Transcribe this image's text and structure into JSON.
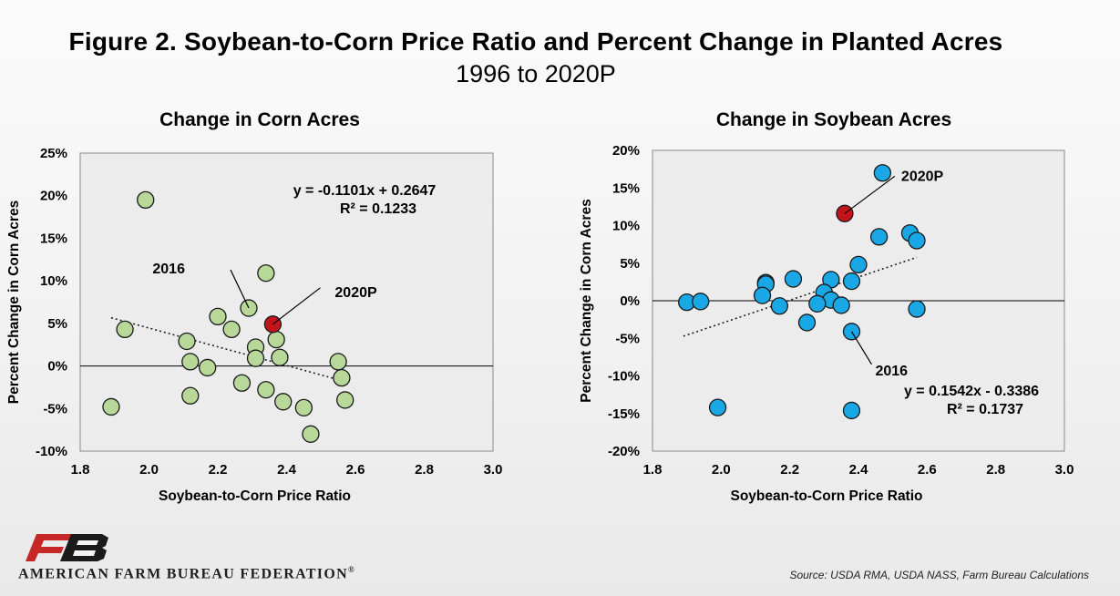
{
  "figure": {
    "title": "Figure 2. Soybean-to-Corn Price Ratio and Percent Change in Planted Acres",
    "subtitle": "1996 to 2020P"
  },
  "footer": {
    "org": "AMERICAN FARM BUREAU FEDERATION",
    "org_mark": "®",
    "source": "Source: USDA RMA, USDA NASS, Farm Bureau Calculations"
  },
  "colors": {
    "corn_point": "#b8d89a",
    "soy_point": "#1aa7e6",
    "highlight_point": "#c4141b",
    "plot_bg": "#ececec",
    "logo_red": "#c62828",
    "logo_dark": "#1b1b1b"
  },
  "chart_data": [
    {
      "type": "scatter",
      "title": "Change in Corn Acres",
      "xlabel": "Soybean-to-Corn Price Ratio",
      "ylabel": "Percent Change in Corn Acres",
      "xlim": [
        1.8,
        3.0
      ],
      "ylim": [
        -10,
        25
      ],
      "xticks": [
        1.8,
        2.0,
        2.2,
        2.4,
        2.6,
        2.8,
        3.0
      ],
      "xtick_labels": [
        "1.8",
        "2.0",
        "2.2",
        "2.4",
        "2.6",
        "2.8",
        "3.0"
      ],
      "yticks": [
        -10,
        -5,
        0,
        5,
        10,
        15,
        20,
        25
      ],
      "ytick_labels": [
        "-10%",
        "-5%",
        "0%",
        "5%",
        "10%",
        "15%",
        "20%",
        "25%"
      ],
      "grid": false,
      "series": [
        {
          "points": [
            [
              1.99,
              19.5
            ],
            [
              1.89,
              -4.8
            ],
            [
              1.93,
              4.3
            ],
            [
              2.11,
              2.9
            ],
            [
              2.12,
              0.5
            ],
            [
              2.12,
              -3.5
            ],
            [
              2.17,
              -0.2
            ],
            [
              2.2,
              5.8
            ],
            [
              2.24,
              4.3
            ],
            [
              2.27,
              -2.0
            ],
            [
              2.29,
              6.8
            ],
            [
              2.31,
              2.2
            ],
            [
              2.31,
              0.9
            ],
            [
              2.34,
              10.9
            ],
            [
              2.34,
              -2.8
            ],
            [
              2.37,
              3.1
            ],
            [
              2.38,
              1.0
            ],
            [
              2.39,
              -4.2
            ],
            [
              2.45,
              -4.9
            ],
            [
              2.47,
              -8.0
            ],
            [
              2.55,
              0.5
            ],
            [
              2.56,
              -1.4
            ],
            [
              2.57,
              -4.0
            ]
          ]
        }
      ],
      "highlight": {
        "label": "2020P",
        "x": 2.36,
        "y": 4.9
      },
      "annotations": [
        {
          "text": "2016",
          "x": 2.29,
          "y": 6.8
        },
        {
          "text": "2020P",
          "x": 2.36,
          "y": 4.9
        }
      ],
      "trendline": {
        "slope": -0.1101,
        "intercept": 0.2647,
        "x_range": [
          1.89,
          2.57
        ],
        "units": "fraction"
      },
      "equation": "y = -0.1101x + 0.2647",
      "r2": "R² = 0.1233"
    },
    {
      "type": "scatter",
      "title": "Change in Soybean Acres",
      "xlabel": "Soybean-to-Corn Price Ratio",
      "ylabel": "Percent Change in Corn Acres",
      "xlim": [
        1.8,
        3.0
      ],
      "ylim": [
        -20,
        20
      ],
      "xticks": [
        1.8,
        2.0,
        2.2,
        2.4,
        2.6,
        2.8,
        3.0
      ],
      "xtick_labels": [
        "1.8",
        "2.0",
        "2.2",
        "2.4",
        "2.6",
        "2.8",
        "3.0"
      ],
      "yticks": [
        -20,
        -15,
        -10,
        -5,
        0,
        5,
        10,
        15,
        20
      ],
      "ytick_labels": [
        "-20%",
        "-15%",
        "-10%",
        "-5%",
        "0%",
        "5%",
        "10%",
        "15%",
        "20%"
      ],
      "grid": false,
      "series": [
        {
          "points": [
            [
              2.47,
              17.0
            ],
            [
              2.46,
              8.5
            ],
            [
              2.55,
              9.0
            ],
            [
              2.57,
              8.0
            ],
            [
              2.4,
              4.8
            ],
            [
              2.21,
              2.9
            ],
            [
              2.32,
              2.8
            ],
            [
              2.38,
              2.6
            ],
            [
              2.13,
              2.4
            ],
            [
              2.13,
              2.2
            ],
            [
              2.12,
              0.7
            ],
            [
              2.3,
              1.1
            ],
            [
              2.32,
              0.1
            ],
            [
              1.9,
              -0.2
            ],
            [
              1.94,
              -0.1
            ],
            [
              2.17,
              -0.7
            ],
            [
              2.28,
              -0.4
            ],
            [
              2.35,
              -0.6
            ],
            [
              2.57,
              -1.1
            ],
            [
              2.25,
              -2.9
            ],
            [
              2.38,
              -4.1
            ],
            [
              1.99,
              -14.2
            ],
            [
              2.38,
              -14.6
            ]
          ]
        }
      ],
      "highlight": {
        "label": "2020P",
        "x": 2.36,
        "y": 11.6
      },
      "annotations": [
        {
          "text": "2020P",
          "x": 2.36,
          "y": 11.6
        },
        {
          "text": "2016",
          "x": 2.38,
          "y": -4.1
        }
      ],
      "trendline": {
        "slope": 0.1542,
        "intercept": -0.3386,
        "x_range": [
          1.89,
          2.57
        ],
        "units": "fraction"
      },
      "equation": "y = 0.1542x - 0.3386",
      "r2": "R² = 0.1737"
    }
  ]
}
